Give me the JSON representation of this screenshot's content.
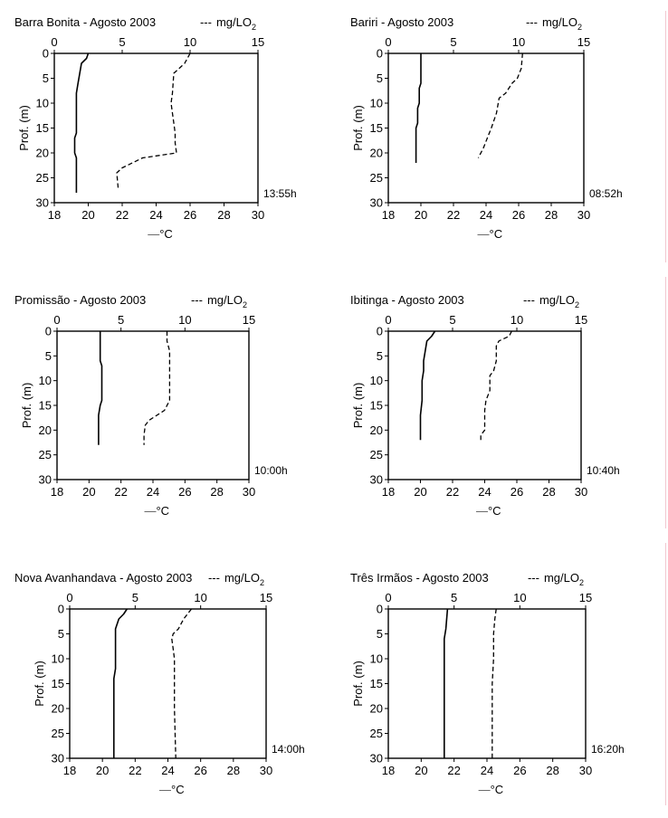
{
  "chart_data": [
    {
      "type": "line",
      "title": "Barra Bonita - Agosto 2003",
      "ylabel": "Prof. (m)",
      "ylim": [
        0,
        30
      ],
      "y_ticks": [
        0,
        5,
        10,
        15,
        20,
        25,
        30
      ],
      "top_axis": {
        "label": "mg/LO",
        "label_sub": "2",
        "legend_symbol": "---",
        "range": [
          0,
          15
        ],
        "ticks": [
          0,
          5,
          10,
          15
        ]
      },
      "bottom_axis": {
        "label": "°C",
        "legend_symbol": "—",
        "range": [
          18,
          30
        ],
        "ticks": [
          18,
          20,
          22,
          24,
          26,
          28,
          30
        ]
      },
      "time_label": "13:55h",
      "series": [
        {
          "axis": "bottom",
          "style": "solid",
          "points": [
            [
              20.0,
              0
            ],
            [
              19.9,
              1
            ],
            [
              19.6,
              2
            ],
            [
              19.5,
              4
            ],
            [
              19.4,
              6
            ],
            [
              19.3,
              8
            ],
            [
              19.3,
              12
            ],
            [
              19.3,
              16
            ],
            [
              19.2,
              17
            ],
            [
              19.2,
              20
            ],
            [
              19.3,
              21
            ],
            [
              19.3,
              28
            ]
          ]
        },
        {
          "axis": "top",
          "style": "dashed",
          "points": [
            [
              10.0,
              0
            ],
            [
              9.6,
              2
            ],
            [
              8.8,
              4
            ],
            [
              8.7,
              8
            ],
            [
              8.6,
              10
            ],
            [
              8.8,
              14
            ],
            [
              8.9,
              16
            ],
            [
              8.9,
              18
            ],
            [
              9.0,
              20
            ],
            [
              6.5,
              21
            ],
            [
              5.0,
              23
            ],
            [
              4.6,
              24
            ],
            [
              4.7,
              27
            ]
          ]
        }
      ]
    },
    {
      "type": "line",
      "title": "Bariri - Agosto 2003",
      "ylabel": "Prof. (m)",
      "ylim": [
        0,
        30
      ],
      "y_ticks": [
        0,
        5,
        10,
        15,
        20,
        25,
        30
      ],
      "top_axis": {
        "label": "mg/LO",
        "label_sub": "2",
        "legend_symbol": "---",
        "range": [
          0,
          15
        ],
        "ticks": [
          0,
          5,
          10,
          15
        ]
      },
      "bottom_axis": {
        "label": "°C",
        "legend_symbol": "—",
        "range": [
          18,
          30
        ],
        "ticks": [
          18,
          20,
          22,
          24,
          26,
          28,
          30
        ]
      },
      "time_label": "08:52h",
      "series": [
        {
          "axis": "bottom",
          "style": "solid",
          "points": [
            [
              20.0,
              0
            ],
            [
              20.0,
              6
            ],
            [
              19.9,
              7
            ],
            [
              19.9,
              10
            ],
            [
              19.8,
              11
            ],
            [
              19.8,
              14
            ],
            [
              19.7,
              15
            ],
            [
              19.7,
              22
            ]
          ]
        },
        {
          "axis": "top",
          "style": "dashed",
          "points": [
            [
              10.3,
              0
            ],
            [
              10.2,
              3
            ],
            [
              9.9,
              5
            ],
            [
              9.5,
              6
            ],
            [
              9.0,
              8
            ],
            [
              8.5,
              9
            ],
            [
              8.3,
              12
            ],
            [
              7.9,
              15
            ],
            [
              7.6,
              17
            ],
            [
              7.3,
              19
            ],
            [
              6.9,
              21
            ]
          ]
        }
      ]
    },
    {
      "type": "line",
      "title": "Promissão - Agosto 2003",
      "ylabel": "Prof. (m)",
      "ylim": [
        0,
        30
      ],
      "y_ticks": [
        0,
        5,
        10,
        15,
        20,
        25,
        30
      ],
      "top_axis": {
        "label": "mg/LO",
        "label_sub": "2",
        "legend_symbol": "---",
        "range": [
          0,
          15
        ],
        "ticks": [
          0,
          5,
          10,
          15
        ]
      },
      "bottom_axis": {
        "label": "°C",
        "legend_symbol": "—",
        "range": [
          18,
          30
        ],
        "ticks": [
          18,
          20,
          22,
          24,
          26,
          28,
          30
        ]
      },
      "time_label": "10:00h",
      "series": [
        {
          "axis": "bottom",
          "style": "solid",
          "points": [
            [
              20.7,
              0
            ],
            [
              20.7,
              6
            ],
            [
              20.8,
              7
            ],
            [
              20.8,
              14
            ],
            [
              20.7,
              15
            ],
            [
              20.6,
              17
            ],
            [
              20.6,
              23
            ]
          ]
        },
        {
          "axis": "top",
          "style": "dashed",
          "points": [
            [
              8.6,
              0
            ],
            [
              8.6,
              2
            ],
            [
              8.8,
              4
            ],
            [
              8.8,
              14
            ],
            [
              8.4,
              16
            ],
            [
              7.2,
              18
            ],
            [
              6.9,
              19
            ],
            [
              6.8,
              21
            ],
            [
              6.8,
              23
            ]
          ]
        }
      ]
    },
    {
      "type": "line",
      "title": "Ibitinga - Agosto 2003",
      "ylabel": "Prof. (m)",
      "ylim": [
        0,
        30
      ],
      "y_ticks": [
        0,
        5,
        10,
        15,
        20,
        25,
        30
      ],
      "top_axis": {
        "label": "mg/LO",
        "label_sub": "2",
        "legend_symbol": "---",
        "range": [
          0,
          15
        ],
        "ticks": [
          0,
          5,
          10,
          15
        ]
      },
      "bottom_axis": {
        "label": "°C",
        "legend_symbol": "—",
        "range": [
          18,
          30
        ],
        "ticks": [
          18,
          20,
          22,
          24,
          26,
          28,
          30
        ]
      },
      "time_label": "10:40h",
      "series": [
        {
          "axis": "bottom",
          "style": "solid",
          "points": [
            [
              20.9,
              0
            ],
            [
              20.7,
              1
            ],
            [
              20.4,
              2
            ],
            [
              20.3,
              4
            ],
            [
              20.2,
              6
            ],
            [
              20.2,
              8
            ],
            [
              20.1,
              10
            ],
            [
              20.1,
              14
            ],
            [
              20.0,
              17
            ],
            [
              20.0,
              22
            ]
          ]
        },
        {
          "axis": "top",
          "style": "dashed",
          "points": [
            [
              9.6,
              0
            ],
            [
              9.4,
              1
            ],
            [
              8.6,
              2
            ],
            [
              8.4,
              3
            ],
            [
              8.4,
              6
            ],
            [
              8.2,
              8
            ],
            [
              7.9,
              9
            ],
            [
              7.9,
              12
            ],
            [
              7.6,
              14
            ],
            [
              7.5,
              16
            ],
            [
              7.5,
              20
            ],
            [
              7.2,
              21
            ],
            [
              7.2,
              22
            ]
          ]
        }
      ]
    },
    {
      "type": "line",
      "title": "Nova Avanhandava - Agosto 2003",
      "ylabel": "Prof. (m)",
      "ylim": [
        0,
        30
      ],
      "y_ticks": [
        0,
        5,
        10,
        15,
        20,
        25,
        30
      ],
      "top_axis": {
        "label": "mg/LO",
        "label_sub": "2",
        "legend_symbol": "---",
        "range": [
          0,
          15
        ],
        "ticks": [
          0,
          5,
          10,
          15
        ]
      },
      "bottom_axis": {
        "label": "°C",
        "legend_symbol": "—",
        "range": [
          18,
          30
        ],
        "ticks": [
          18,
          20,
          22,
          24,
          26,
          28,
          30
        ]
      },
      "time_label": "14:00h",
      "series": [
        {
          "axis": "bottom",
          "style": "solid",
          "points": [
            [
              21.5,
              0
            ],
            [
              21.3,
              1
            ],
            [
              21.0,
              2
            ],
            [
              20.8,
              4
            ],
            [
              20.8,
              10
            ],
            [
              20.8,
              12
            ],
            [
              20.7,
              14
            ],
            [
              20.7,
              30
            ]
          ]
        },
        {
          "axis": "top",
          "style": "dashed",
          "points": [
            [
              9.3,
              0
            ],
            [
              9.0,
              1
            ],
            [
              8.7,
              2
            ],
            [
              8.3,
              4
            ],
            [
              7.9,
              5
            ],
            [
              7.8,
              6
            ],
            [
              7.9,
              8
            ],
            [
              8.0,
              10
            ],
            [
              8.0,
              20
            ],
            [
              8.1,
              30
            ]
          ]
        }
      ]
    },
    {
      "type": "line",
      "title": "Três Irmãos - Agosto 2003",
      "ylabel": "Prof. (m)",
      "ylim": [
        0,
        30
      ],
      "y_ticks": [
        0,
        5,
        10,
        15,
        20,
        25,
        30
      ],
      "top_axis": {
        "label": "mg/LO",
        "label_sub": "2",
        "legend_symbol": "---",
        "range": [
          0,
          15
        ],
        "ticks": [
          0,
          5,
          10,
          15
        ]
      },
      "bottom_axis": {
        "label": "°C",
        "legend_symbol": "—",
        "range": [
          18,
          30
        ],
        "ticks": [
          18,
          20,
          22,
          24,
          26,
          28,
          30
        ]
      },
      "time_label": "16:20h",
      "series": [
        {
          "axis": "bottom",
          "style": "solid",
          "points": [
            [
              21.6,
              0
            ],
            [
              21.5,
              4
            ],
            [
              21.4,
              6
            ],
            [
              21.4,
              30
            ]
          ]
        },
        {
          "axis": "top",
          "style": "dashed",
          "points": [
            [
              8.2,
              0
            ],
            [
              8.1,
              2
            ],
            [
              8.0,
              5
            ],
            [
              8.0,
              10
            ],
            [
              7.9,
              15
            ],
            [
              7.9,
              20
            ],
            [
              7.9,
              25
            ],
            [
              7.9,
              30
            ]
          ]
        }
      ]
    }
  ]
}
